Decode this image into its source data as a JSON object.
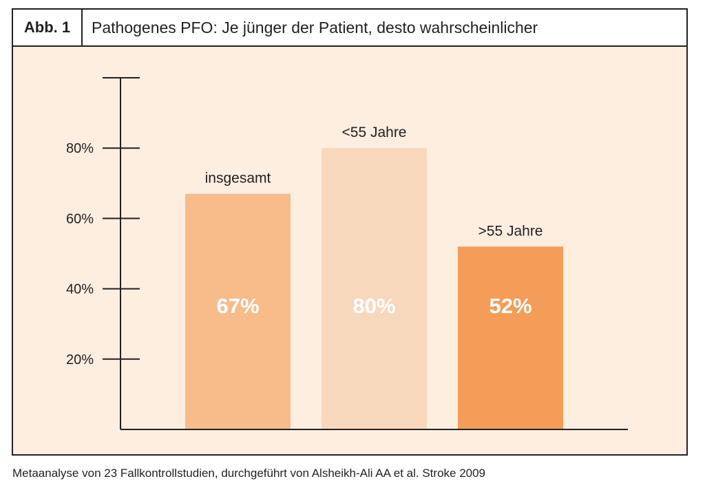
{
  "figure": {
    "tag": "Abb. 1",
    "title": "Pathogenes PFO: Je jünger der Patient, desto wahrscheinlicher"
  },
  "chart_data": {
    "type": "bar",
    "categories": [
      "insgesamt",
      "<55 Jahre",
      ">55 Jahre"
    ],
    "values": [
      67,
      80,
      52
    ],
    "value_labels": [
      "67%",
      "80%",
      "52%"
    ],
    "bar_colors": [
      "#f7bc8a",
      "#f8d8bd",
      "#f39d59"
    ],
    "y_ticks": [
      {
        "value": 20,
        "label": "20%"
      },
      {
        "value": 40,
        "label": "40%"
      },
      {
        "value": 60,
        "label": "60%"
      },
      {
        "value": 80,
        "label": "80%"
      },
      {
        "value": 100,
        "label": ""
      }
    ],
    "ylim": [
      0,
      100
    ],
    "xlabel": "",
    "ylabel": "",
    "grid": false
  },
  "footnote": "Metaanalyse von 23 Fallkontrollstudien, durchgeführt von Alsheikh-Ali AA et al. Stroke 2009",
  "colors": {
    "panel_background": "#fdeee0",
    "axis": "#231f20",
    "value_label": "#ffffff"
  }
}
